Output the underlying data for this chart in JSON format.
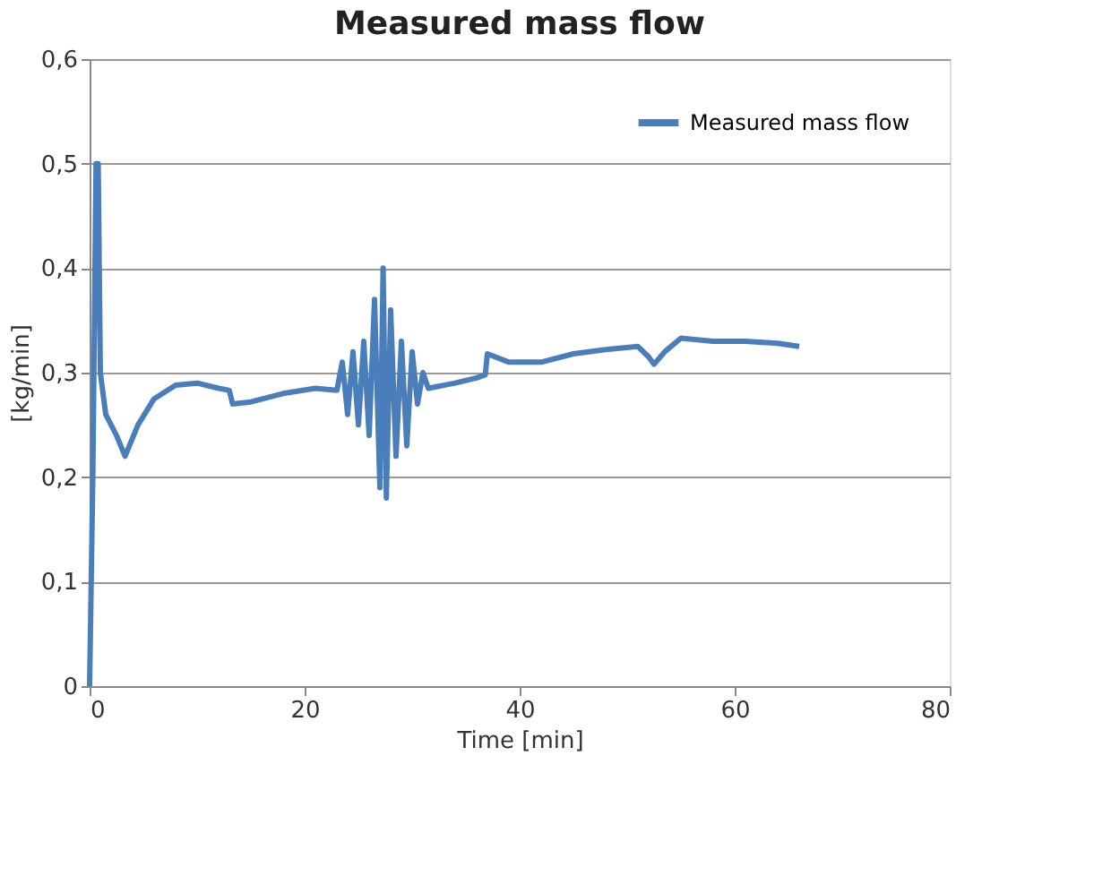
{
  "chart_data": {
    "type": "line",
    "title": "Measured mass flow",
    "xlabel": "Time [min]",
    "ylabel": "[kg/min]",
    "xlim": [
      0,
      80
    ],
    "xticks": [
      0,
      20,
      40,
      60,
      80
    ],
    "ylim": [
      0,
      0.6
    ],
    "yticks": [
      0,
      {
        "value": 0.1,
        "label": "0,1"
      },
      {
        "value": 0.2,
        "label": "0,2"
      },
      {
        "value": 0.3,
        "label": "0,3"
      },
      {
        "value": 0.4,
        "label": "0,4"
      },
      {
        "value": 0.5,
        "label": "0,5"
      },
      {
        "value": 0.6,
        "label": "0,6"
      }
    ],
    "grid": "y",
    "legend": "top right",
    "marker": "none",
    "line_style": "solid",
    "series": [
      {
        "name": "Measured mass flow",
        "color": "#4a7ebb",
        "x": [
          0,
          0.3,
          0.6,
          0.8,
          1.0,
          1.5,
          2.5,
          3.3,
          4.5,
          6,
          8,
          10,
          12,
          13,
          13.3,
          15,
          18,
          21,
          23,
          23.5,
          24,
          24.5,
          25,
          25.5,
          26,
          26.5,
          27,
          27.3,
          27.6,
          28,
          28.5,
          29,
          29.5,
          30,
          30.5,
          31,
          31.5,
          34,
          36,
          36.8,
          37,
          39,
          42,
          45,
          48,
          51,
          52,
          52.5,
          53.5,
          55,
          58,
          61,
          64,
          66
        ],
        "values": [
          0,
          0.2,
          0.5,
          0.5,
          0.3,
          0.26,
          0.24,
          0.22,
          0.25,
          0.275,
          0.288,
          0.29,
          0.285,
          0.283,
          0.27,
          0.272,
          0.28,
          0.285,
          0.283,
          0.31,
          0.26,
          0.32,
          0.25,
          0.33,
          0.24,
          0.37,
          0.19,
          0.4,
          0.18,
          0.36,
          0.22,
          0.33,
          0.23,
          0.32,
          0.27,
          0.3,
          0.285,
          0.29,
          0.295,
          0.298,
          0.318,
          0.31,
          0.31,
          0.318,
          0.322,
          0.325,
          0.315,
          0.308,
          0.32,
          0.333,
          0.33,
          0.33,
          0.328,
          0.325
        ]
      }
    ]
  }
}
